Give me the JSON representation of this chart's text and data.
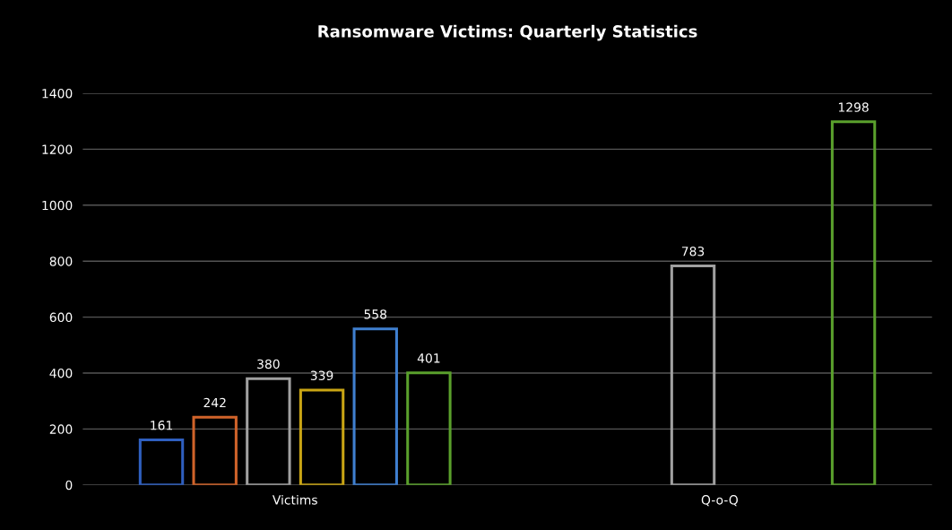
{
  "chart_data": {
    "type": "bar",
    "title": "Ransomware Victims: Quarterly Statistics",
    "categories": [
      "Victims",
      "Q-o-Q"
    ],
    "series": [
      {
        "color": "#2f5fbf",
        "values": [
          161,
          null
        ]
      },
      {
        "color": "#d0632a",
        "values": [
          242,
          null
        ]
      },
      {
        "color": "#a0a0a0",
        "values": [
          380,
          783
        ]
      },
      {
        "color": "#c9a514",
        "values": [
          339,
          null
        ]
      },
      {
        "color": "#3f7fd0",
        "values": [
          558,
          null
        ]
      },
      {
        "color": "#5aa02c",
        "values": [
          401,
          1298
        ]
      }
    ],
    "ylim": [
      0,
      1400
    ],
    "yticks": [
      0,
      200,
      400,
      600,
      800,
      1000,
      1200,
      1400
    ],
    "grid": "y",
    "data_labels": true
  }
}
